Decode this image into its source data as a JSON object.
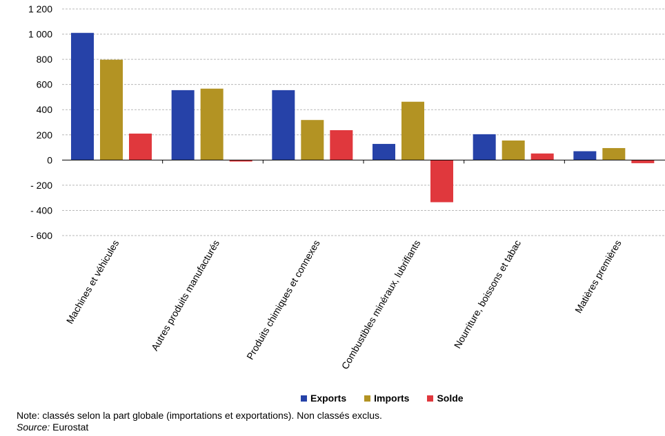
{
  "chart_data": {
    "type": "bar",
    "categories": [
      "Machines et véhicules",
      "Autres produits manufacturés",
      "Produits chimiques et connexes",
      "Combustibles minéraux, lubrifiants",
      "Nourriture, boissons et tabac",
      "Matières premières"
    ],
    "series": [
      {
        "name": "Exports",
        "color": "#2642a8",
        "values": [
          1010,
          555,
          555,
          128,
          205,
          70
        ]
      },
      {
        "name": "Imports",
        "color": "#b39323",
        "values": [
          797,
          567,
          318,
          463,
          155,
          95
        ]
      },
      {
        "name": "Solde",
        "color": "#e0383d",
        "values": [
          210,
          -12,
          237,
          -335,
          52,
          -25
        ]
      }
    ],
    "ylim": [
      -600,
      1200
    ],
    "yticks": [
      1200,
      1000,
      800,
      600,
      400,
      200,
      0,
      -200,
      -400,
      -600
    ],
    "ytick_labels": [
      "1 200",
      "1 000",
      "800",
      "600",
      "400",
      "200",
      "0",
      "- 200",
      "- 400",
      "- 600"
    ],
    "grid": true,
    "legend_position": "bottom"
  },
  "footer": {
    "note": "Note: classés selon la part globale (importations et exportations). Non classés exclus.",
    "source_label": "Source:",
    "source_value": " Eurostat"
  }
}
